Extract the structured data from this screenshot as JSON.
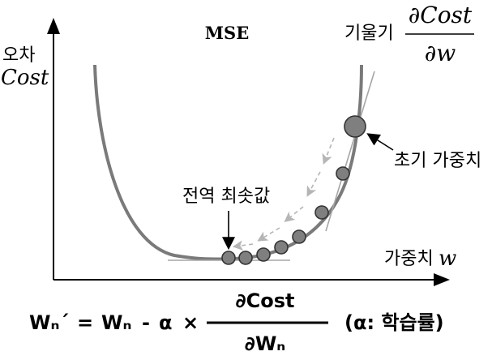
{
  "title": "MSE",
  "y_axis": {
    "label_ko": "오차",
    "label_en": "Cost"
  },
  "x_axis": {
    "label_ko": "가중치",
    "label_en": "w"
  },
  "slope": {
    "label_ko": "기울기",
    "numerator": "∂Cost",
    "denominator": "∂w"
  },
  "annotations": {
    "initial_weight": "초기 가중치",
    "global_minimum": "전역 최솟값"
  },
  "formula": {
    "lhs": "Wₙ´",
    "equals": "=",
    "wn": "Wₙ",
    "minus": "-",
    "alpha": "α",
    "times": "×",
    "frac_numerator": "∂Cost",
    "frac_denominator": "∂Wₙ",
    "note": "(α: 학습률)"
  },
  "colors": {
    "curve": "#7a7a7a",
    "points": "#7f7f7f",
    "tangent": "#a6a6a6",
    "arrows": "#b5b5b5",
    "axis": "#000000"
  }
}
